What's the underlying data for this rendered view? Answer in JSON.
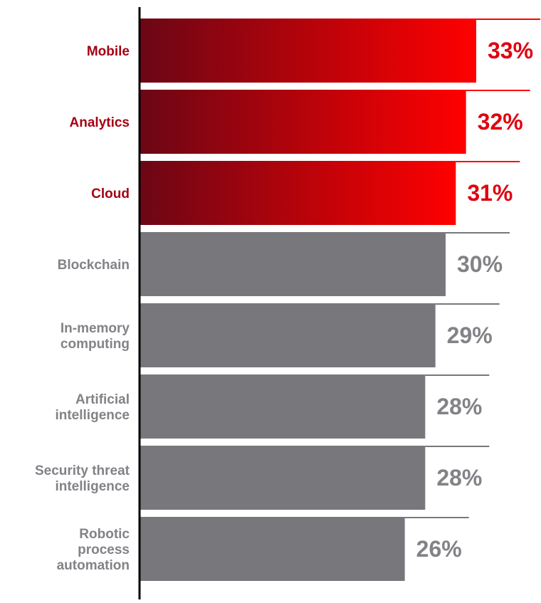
{
  "chart_data": {
    "type": "bar",
    "orientation": "horizontal",
    "categories": [
      [
        "Mobile"
      ],
      [
        "Analytics"
      ],
      [
        "Cloud"
      ],
      [
        "Blockchain"
      ],
      [
        "In-memory",
        "computing"
      ],
      [
        "Artificial",
        "intelligence"
      ],
      [
        "Security threat",
        "intelligence"
      ],
      [
        "Robotic",
        "process",
        "automation"
      ]
    ],
    "values": [
      33,
      32,
      31,
      30,
      29,
      28,
      28,
      26
    ],
    "value_labels": [
      "33%",
      "32%",
      "31%",
      "30%",
      "29%",
      "28%",
      "28%",
      "26%"
    ],
    "highlighted": [
      true,
      true,
      true,
      false,
      false,
      false,
      false,
      false
    ],
    "xlim": [
      0,
      33
    ],
    "title": "",
    "xlabel": "",
    "ylabel": "",
    "grid": false,
    "legend": "none"
  },
  "colors": {
    "highlight_dark": "#6b0615",
    "highlight_light": "#ff0000",
    "highlight_text_label": "#a50014",
    "highlight_text_value": "#e0000f",
    "neutral_bar": "#78787c",
    "neutral_text": "#828287",
    "axis": "#000000",
    "background": "#ffffff"
  }
}
